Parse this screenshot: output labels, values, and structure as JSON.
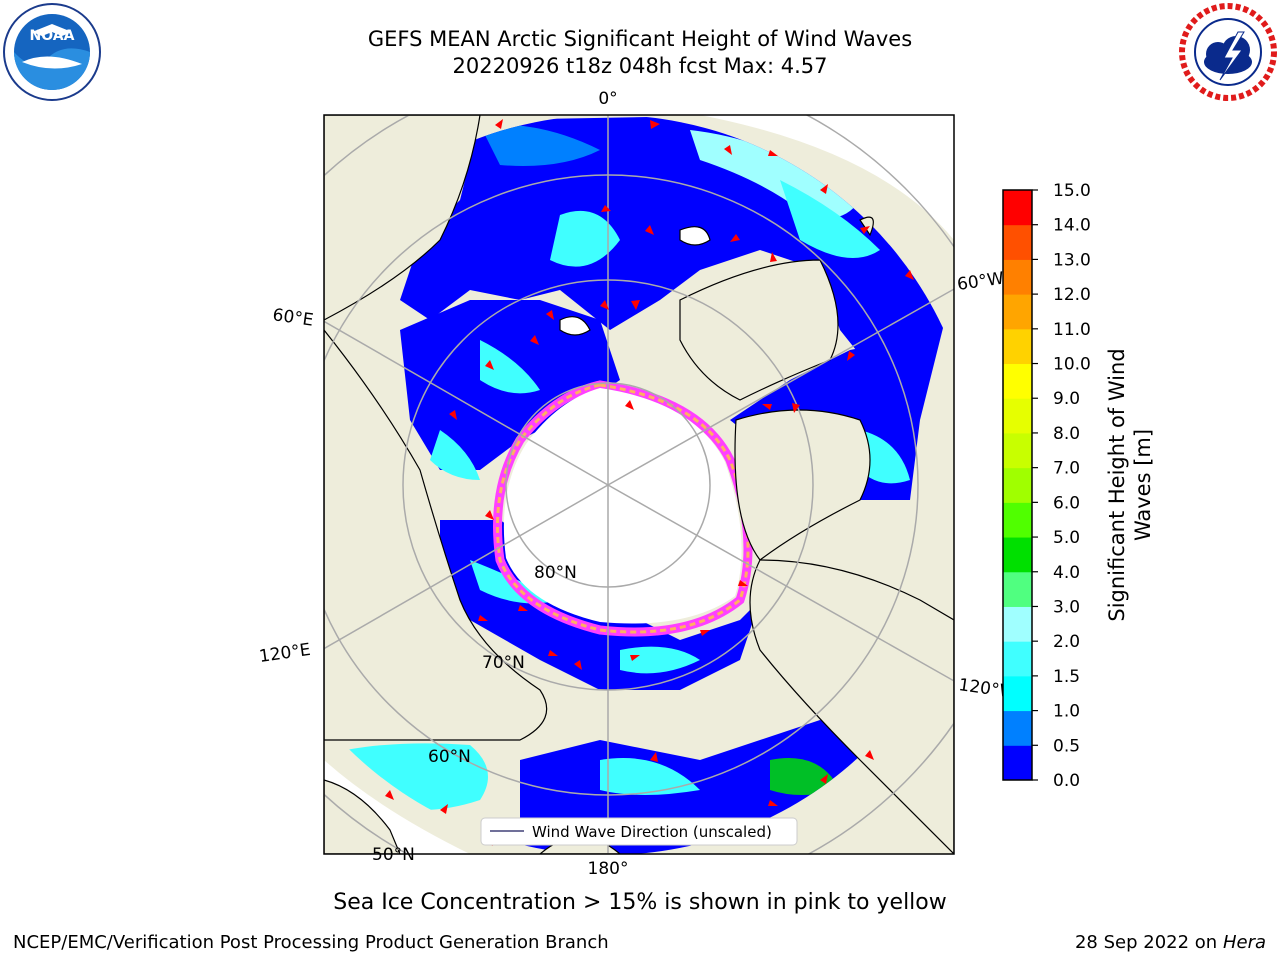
{
  "title": {
    "line1": "GEFS MEAN Arctic Significant Height of Wind Waves",
    "line2": "20220926 t18z 048h fcst   Max: 4.57"
  },
  "logos": {
    "left": "NOAA",
    "right": "NATIONAL WEATHER SERVICE"
  },
  "map": {
    "projection": "north polar stereographic",
    "longitude_labels": [
      "0°",
      "60°E",
      "60°W",
      "120°E",
      "120°W",
      "180°"
    ],
    "latitude_labels": [
      "80°N",
      "70°N",
      "60°N",
      "50°N"
    ],
    "legend": "Wind Wave Direction (unscaled)",
    "colors": {
      "land": "#eeeddb",
      "ice": "#ffffff",
      "grid": "#aaaaaa",
      "arrow": "#ff0000"
    }
  },
  "colorbar": {
    "title_line1": "Significant Height of Wind",
    "title_line2": "Waves [m]",
    "ticks": [
      "0.0",
      "0.5",
      "1.0",
      "1.5",
      "2.0",
      "3.0",
      "4.0",
      "5.0",
      "6.0",
      "7.0",
      "8.0",
      "9.0",
      "10.0",
      "11.0",
      "12.0",
      "13.0",
      "14.0",
      "15.0"
    ],
    "colors": [
      "#0000ff",
      "#0080ff",
      "#00ffff",
      "#40ffff",
      "#a0ffff",
      "#50ff80",
      "#00e000",
      "#50ff00",
      "#a0ff00",
      "#c8ff00",
      "#e6ff00",
      "#ffff00",
      "#ffd200",
      "#ffa500",
      "#ff8000",
      "#ff5000",
      "#ff0000"
    ]
  },
  "caption": "Sea Ice Concentration > 15% is shown in pink to yellow",
  "footer": {
    "left": "NCEP/EMC/Verification Post Processing Product Generation Branch",
    "right_date": "28 Sep 2022 on",
    "right_host": "Hera"
  }
}
